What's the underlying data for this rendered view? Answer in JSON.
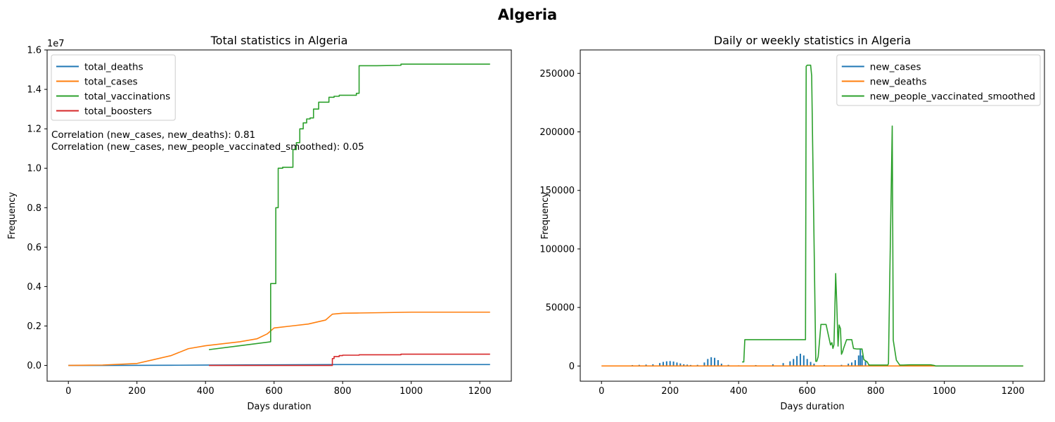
{
  "suptitle": "Algeria",
  "chart_data": [
    {
      "type": "line",
      "title": "Total statistics in Algeria",
      "xlabel": "Days duration",
      "ylabel": "Frequency",
      "y_multiplier_label": "1e7",
      "xlim": [
        -62,
        1292
      ],
      "ylim": [
        -0.08,
        1.6
      ],
      "y_unit": "1e7",
      "xticks": [
        0,
        200,
        400,
        600,
        800,
        1000,
        1200
      ],
      "yticks": [
        0.0,
        0.2,
        0.4,
        0.6,
        0.8,
        1.0,
        1.2,
        1.4,
        1.6
      ],
      "ytick_labels": [
        "0.0",
        "0.2",
        "0.4",
        "0.6",
        "0.8",
        "1.0",
        "1.2",
        "1.4",
        "1.6"
      ],
      "grid": false,
      "legend_placement": "upper-left",
      "annotations": [
        "Correlation (new_cases, new_deaths): 0.81",
        "Correlation (new_cases, new_people_vaccinated_smoothed): 0.05"
      ],
      "series": [
        {
          "name": "total_deaths",
          "color": "#1f77b4",
          "x": [
            0,
            100,
            200,
            300,
            400,
            600,
            800,
            1000,
            1230
          ],
          "y": [
            0,
            0.0002,
            0.0006,
            0.001,
            0.0018,
            0.0032,
            0.0044,
            0.0045,
            0.0045
          ]
        },
        {
          "name": "total_cases",
          "color": "#ff7f0e",
          "x": [
            0,
            100,
            200,
            250,
            300,
            350,
            400,
            500,
            550,
            580,
            600,
            650,
            700,
            750,
            770,
            800,
            850,
            1000,
            1230
          ],
          "y": [
            0,
            0.002,
            0.01,
            0.03,
            0.05,
            0.085,
            0.1,
            0.12,
            0.135,
            0.16,
            0.19,
            0.2,
            0.21,
            0.23,
            0.26,
            0.265,
            0.266,
            0.27,
            0.27
          ]
        },
        {
          "name": "total_vaccinations",
          "color": "#2ca02c",
          "x": [
            410,
            500,
            590,
            590,
            605,
            605,
            612,
            612,
            625,
            625,
            655,
            655,
            665,
            665,
            675,
            675,
            685,
            685,
            695,
            695,
            705,
            705,
            715,
            715,
            730,
            730,
            760,
            760,
            775,
            775,
            790,
            790,
            840,
            840,
            848,
            848,
            900,
            970,
            970,
            1230
          ],
          "y": [
            0.08,
            0.1,
            0.12,
            0.415,
            0.415,
            0.8,
            0.8,
            1.0,
            1.0,
            1.005,
            1.005,
            1.095,
            1.095,
            1.13,
            1.13,
            1.2,
            1.2,
            1.23,
            1.23,
            1.25,
            1.25,
            1.255,
            1.255,
            1.3,
            1.3,
            1.335,
            1.335,
            1.36,
            1.36,
            1.365,
            1.365,
            1.37,
            1.37,
            1.38,
            1.38,
            1.52,
            1.52,
            1.522,
            1.528,
            1.528
          ]
        },
        {
          "name": "total_boosters",
          "color": "#d62728",
          "x": [
            410,
            770,
            770,
            775,
            775,
            790,
            790,
            800,
            800,
            848,
            848,
            970,
            970,
            1230
          ],
          "y": [
            0.0,
            0.0,
            0.035,
            0.035,
            0.045,
            0.045,
            0.05,
            0.05,
            0.052,
            0.052,
            0.054,
            0.054,
            0.057,
            0.057
          ]
        }
      ]
    },
    {
      "type": "line",
      "title": "Daily or weekly statistics in Algeria",
      "xlabel": "Days duration",
      "ylabel": "Frequency",
      "xlim": [
        -62,
        1292
      ],
      "ylim": [
        -13000,
        270000
      ],
      "xticks": [
        0,
        200,
        400,
        600,
        800,
        1000,
        1200
      ],
      "yticks": [
        0,
        50000,
        100000,
        150000,
        200000,
        250000
      ],
      "ytick_labels": [
        "0",
        "50000",
        "100000",
        "150000",
        "200000",
        "250000"
      ],
      "grid": false,
      "legend_placement": "upper-right",
      "series": [
        {
          "name": "new_cases",
          "color": "#1f77b4",
          "render": "spikes",
          "x": [
            90,
            110,
            130,
            150,
            170,
            180,
            190,
            200,
            210,
            220,
            230,
            240,
            250,
            260,
            280,
            300,
            310,
            320,
            330,
            340,
            350,
            370,
            400,
            450,
            500,
            530,
            550,
            560,
            570,
            580,
            590,
            600,
            610,
            620,
            650,
            700,
            720,
            730,
            740,
            750,
            755,
            760,
            770,
            780
          ],
          "y": [
            800,
            1000,
            1200,
            1500,
            2500,
            3500,
            4000,
            4200,
            3800,
            3000,
            2200,
            1500,
            1200,
            900,
            1000,
            3000,
            6000,
            7500,
            7000,
            5000,
            2000,
            1000,
            600,
            800,
            1500,
            2500,
            4000,
            6000,
            8500,
            10500,
            9000,
            6000,
            3500,
            2000,
            800,
            1000,
            2000,
            3000,
            5000,
            9000,
            15000,
            9000,
            4000,
            1500
          ]
        },
        {
          "name": "new_deaths",
          "color": "#ff7f0e",
          "x": [
            0,
            200,
            400,
            550,
            600,
            700,
            800,
            1000,
            1230
          ],
          "y": [
            0,
            10,
            15,
            20,
            25,
            15,
            8,
            0,
            0
          ]
        },
        {
          "name": "new_people_vaccinated_smoothed",
          "color": "#2ca02c",
          "x": [
            410,
            415,
            418,
            595,
            597,
            600,
            610,
            613,
            625,
            628,
            632,
            640,
            655,
            665,
            668,
            672,
            675,
            678,
            680,
            683,
            686,
            690,
            693,
            697,
            700,
            703,
            706,
            715,
            730,
            735,
            745,
            760,
            765,
            775,
            780,
            790,
            800,
            835,
            837,
            840,
            848,
            851,
            860,
            870,
            880,
            900,
            960,
            970,
            975,
            1230
          ],
          "y": [
            3500,
            3500,
            22500,
            22500,
            256000,
            257000,
            257000,
            248000,
            4000,
            4000,
            8000,
            35500,
            35500,
            22000,
            18000,
            20000,
            15000,
            18000,
            40000,
            79000,
            55000,
            17000,
            35000,
            32000,
            10000,
            12000,
            15000,
            22500,
            22500,
            15000,
            14500,
            14500,
            5500,
            3500,
            800,
            800,
            800,
            800,
            2000,
            60000,
            205000,
            22000,
            5000,
            800,
            800,
            1000,
            1000,
            500,
            0,
            0
          ]
        }
      ]
    }
  ]
}
